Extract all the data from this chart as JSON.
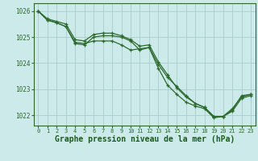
{
  "background_color": "#cceaea",
  "grid_color": "#aacccc",
  "line_color": "#2d6a2d",
  "marker_color": "#2d6a2d",
  "title": "Graphe pression niveau de la mer (hPa)",
  "title_fontsize": 7.0,
  "xlabel_color": "#1a5c1a",
  "ylabel_ticks": [
    1022,
    1023,
    1024,
    1025,
    1026
  ],
  "xlim": [
    -0.5,
    23.5
  ],
  "ylim": [
    1021.6,
    1026.3
  ],
  "series": [
    {
      "x": [
        0,
        1,
        2,
        3,
        4,
        5,
        6,
        7,
        8,
        9,
        10,
        11,
        12,
        13,
        14,
        15,
        16,
        17,
        18,
        19,
        20,
        21,
        22,
        23
      ],
      "y": [
        1026.0,
        1025.65,
        1025.55,
        1025.4,
        1024.8,
        1024.75,
        1024.85,
        1024.85,
        1024.85,
        1024.7,
        1024.5,
        1024.55,
        1024.6,
        1023.95,
        1023.45,
        1023.1,
        1022.75,
        1022.45,
        1022.3,
        1021.95,
        1021.95,
        1022.2,
        1022.75,
        1022.8
      ]
    },
    {
      "x": [
        0,
        1,
        2,
        3,
        4,
        5,
        6,
        7,
        8,
        9,
        10,
        11,
        12,
        13,
        14,
        15,
        16,
        17,
        18,
        19,
        20,
        21,
        22,
        23
      ],
      "y": [
        1026.0,
        1025.65,
        1025.55,
        1025.4,
        1024.75,
        1024.7,
        1025.0,
        1025.05,
        1025.05,
        1025.0,
        1024.85,
        1024.5,
        1024.6,
        1023.8,
        1023.15,
        1022.8,
        1022.5,
        1022.35,
        1022.25,
        1021.9,
        1021.95,
        1022.15,
        1022.65,
        1022.75
      ]
    },
    {
      "x": [
        0,
        1,
        2,
        3,
        4,
        5,
        6,
        7,
        8,
        9,
        10,
        11,
        12,
        13,
        14,
        15,
        16,
        17,
        18,
        19,
        20,
        21,
        22,
        23
      ],
      "y": [
        1026.0,
        1025.7,
        1025.6,
        1025.5,
        1024.9,
        1024.85,
        1025.1,
        1025.15,
        1025.15,
        1025.05,
        1024.9,
        1024.65,
        1024.7,
        1024.05,
        1023.55,
        1023.05,
        1022.7,
        1022.45,
        1022.3,
        1021.95,
        1021.95,
        1022.25,
        1022.7,
        1022.8
      ]
    }
  ]
}
